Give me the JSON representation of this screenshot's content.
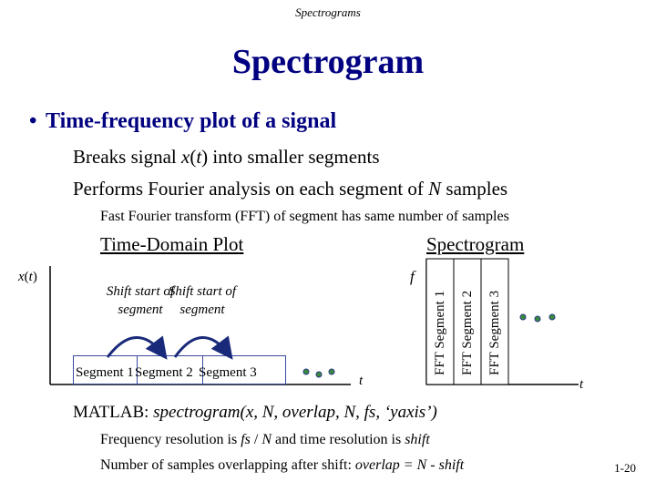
{
  "header": "Spectrograms",
  "title": "Spectrogram",
  "bullet": "Time-frequency plot of a signal",
  "line1": {
    "pre": "Breaks signal ",
    "x": "x",
    "open": "(",
    "t": "t",
    "close": ")",
    "post": " into smaller segments"
  },
  "line2": {
    "pre": "Performs Fourier analysis on each segment of ",
    "N": "N",
    "post": " samples"
  },
  "line3": "Fast Fourier transform (FFT) of segment has same number of samples",
  "time_plot": {
    "heading": "Time-Domain Plot",
    "y_label": {
      "x": "x",
      "open": "(",
      "t": "t",
      "close": ")"
    },
    "x_label": "t",
    "shift_label_1": "Shift start of segment",
    "shift_label_2": "Shift start of segment",
    "segments": [
      "Segment 1",
      "Segment 2",
      "Segment 3"
    ]
  },
  "spectrogram": {
    "heading": "Spectrogram",
    "y_label": "f",
    "x_label": "t",
    "bars": [
      "FFT Segment 1",
      "FFT Segment 2",
      "FFT Segment 3"
    ]
  },
  "matlab": {
    "pre": "MATLAB:  ",
    "cmd": "spectrogram(x, N, overlap, N, fs, ‘yaxis’)"
  },
  "res": {
    "pre": "Frequency resolution is ",
    "fs": "fs",
    "slash": " / ",
    "N": "N",
    "mid": " and time resolution is ",
    "shift": "shift"
  },
  "overlap": {
    "pre": "Number of samples overlapping after shift: ",
    "formula": "overlap = N - shift"
  },
  "page_number": "1-20",
  "colors": {
    "title": "#000080",
    "arrow": "#1a2a7a",
    "dot_fill": "#3a8a3a",
    "dot_stroke": "#2a3a8a"
  }
}
